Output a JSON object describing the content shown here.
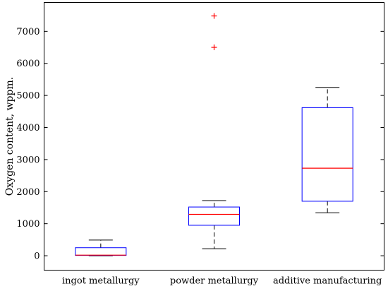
{
  "chart_data": {
    "type": "box",
    "title": "",
    "xlabel": "",
    "ylabel": "Oxygen content, wppm.",
    "ylim": [
      -450,
      7900
    ],
    "yticks": [
      0,
      1000,
      2000,
      3000,
      4000,
      5000,
      6000,
      7000
    ],
    "grid": false,
    "categories": [
      "ingot metallurgy",
      "powder metallurgy",
      "additive manufacturing"
    ],
    "boxes": [
      {
        "category": "ingot metallurgy",
        "whisker_low": 0,
        "q1": 10,
        "median": 20,
        "q3": 250,
        "whisker_high": 490,
        "outliers": []
      },
      {
        "category": "powder metallurgy",
        "whisker_low": 220,
        "q1": 950,
        "median": 1290,
        "q3": 1520,
        "whisker_high": 1720,
        "outliers": [
          6500,
          7480
        ]
      },
      {
        "category": "additive manufacturing",
        "whisker_low": 1340,
        "q1": 1700,
        "median": 2730,
        "q3": 4620,
        "whisker_high": 5250,
        "outliers": []
      }
    ],
    "colors": {
      "box": "#0000ff",
      "median": "#ff0000",
      "whisker": "#000000",
      "outlier": "#ff0000"
    }
  }
}
